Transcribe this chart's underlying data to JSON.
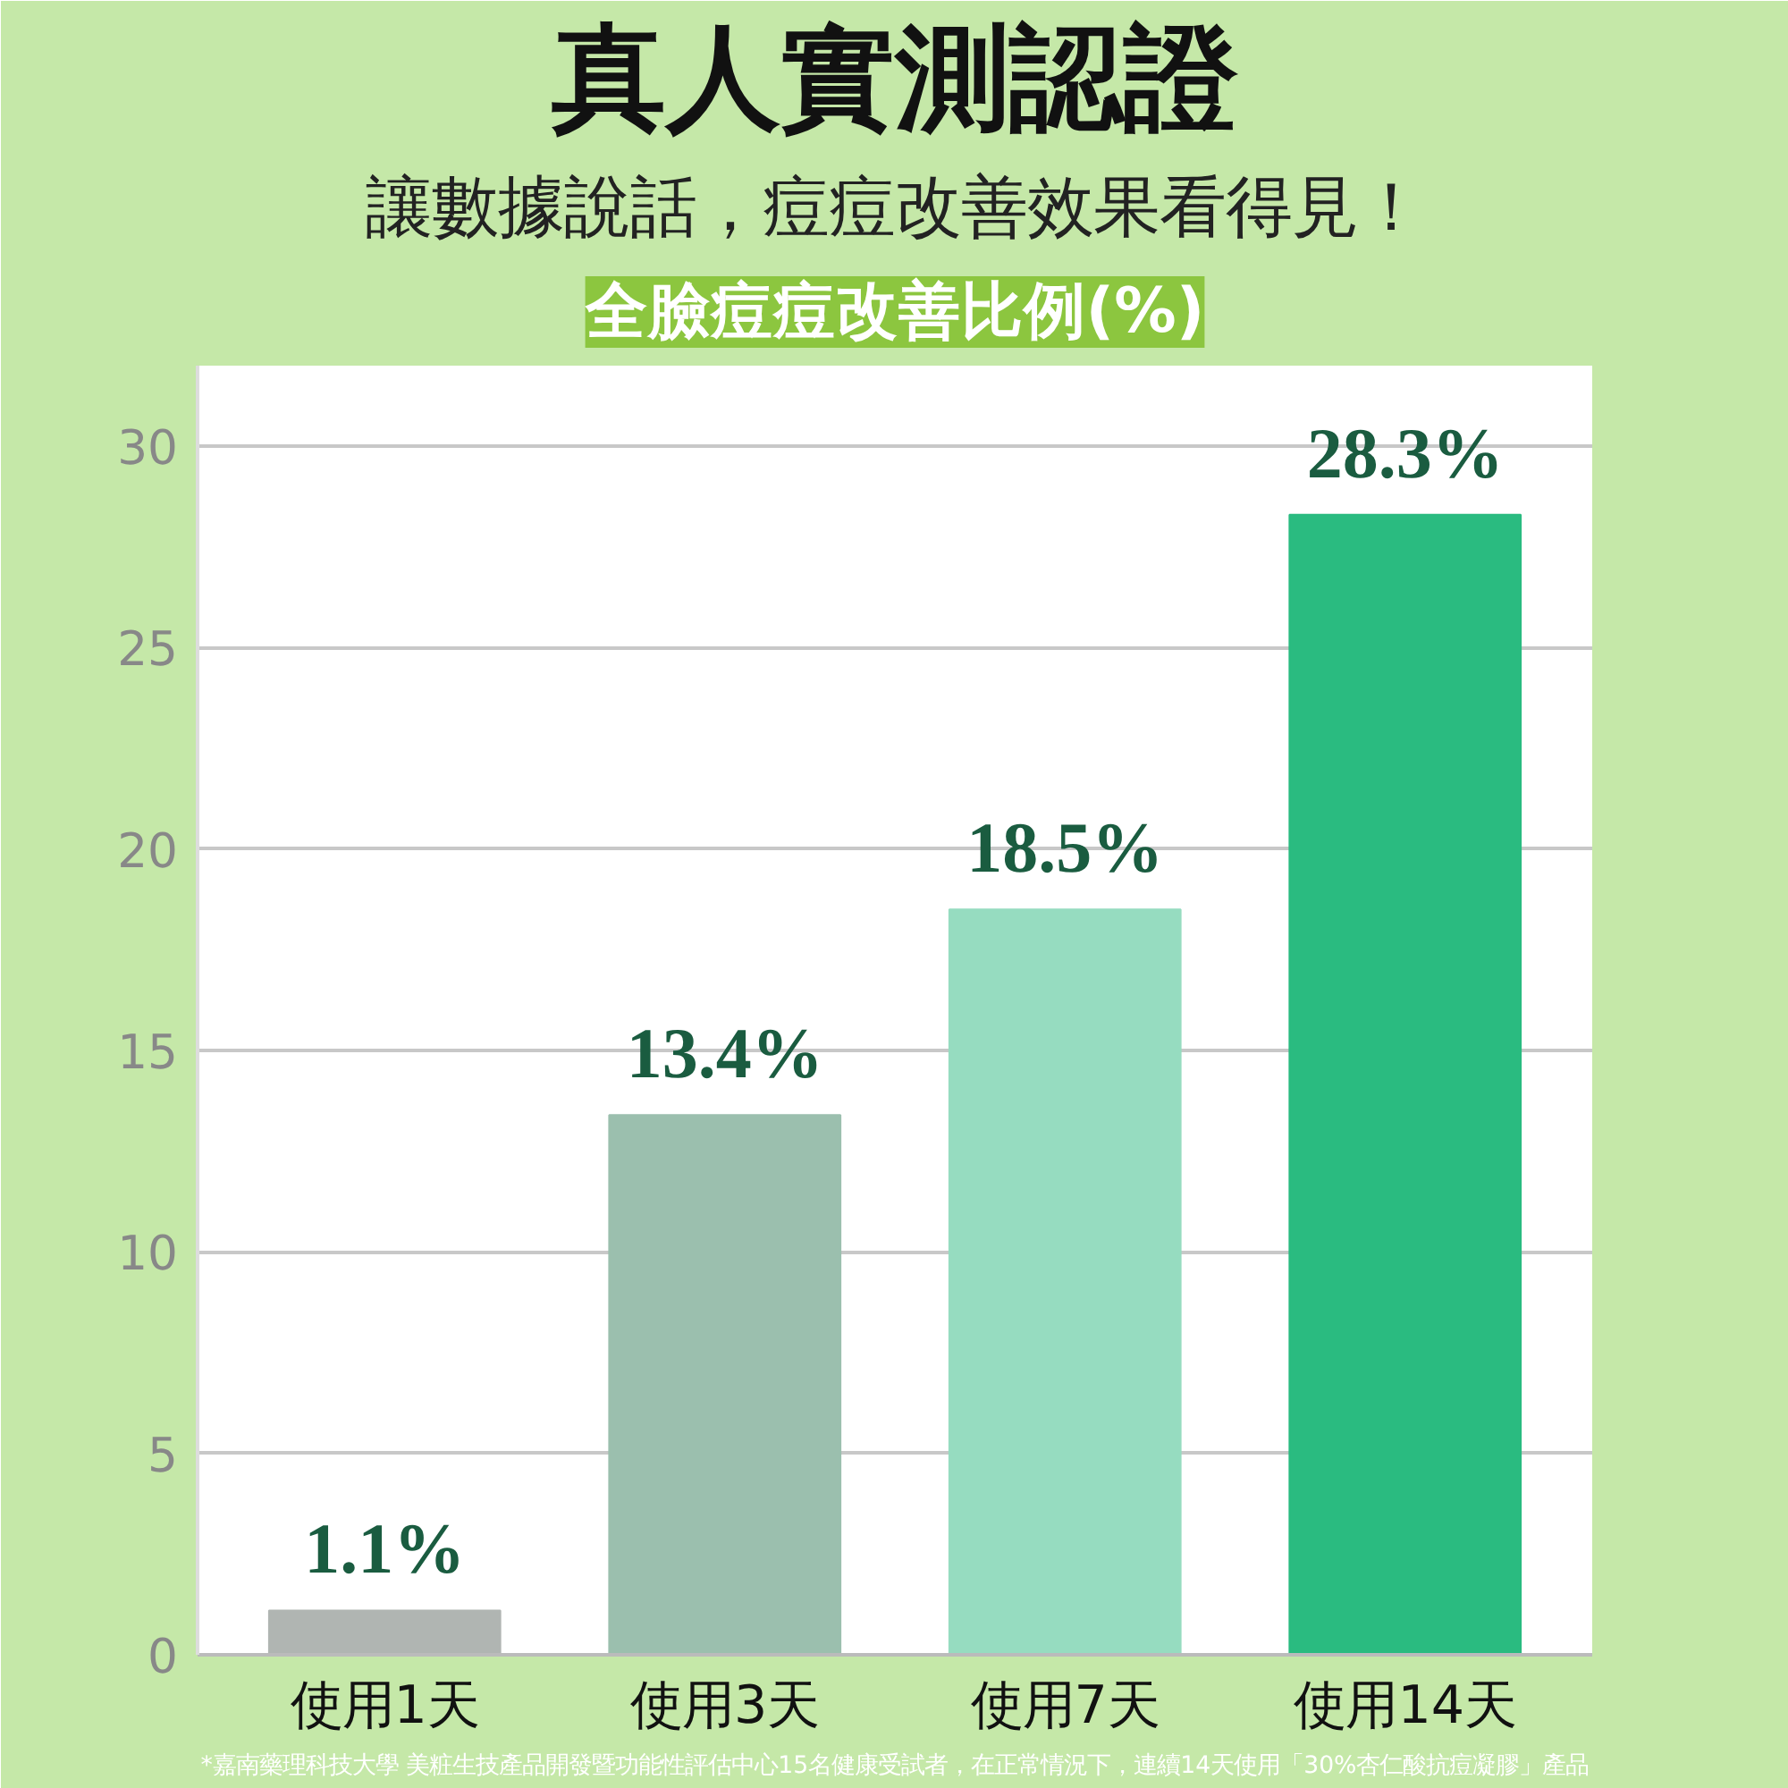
{
  "chart_data": {
    "type": "bar",
    "title": "真人實測認證",
    "subtitle": "讓數據說話，痘痘改善效果看得見！",
    "ylabel": "全臉痘痘改善比例(%)",
    "categories": [
      "使用1天",
      "使用3天",
      "使用7天",
      "使用14天"
    ],
    "values": [
      1.1,
      13.4,
      18.5,
      28.3
    ],
    "colors": [
      "#b0b5b2",
      "#9bbfae",
      "#96dcc0",
      "#2abb80"
    ],
    "value_labels": [
      "1.1%",
      "13.4%",
      "18.5%",
      "28.3%"
    ],
    "ylim": [
      0,
      32
    ],
    "yticks": [
      0,
      5,
      10,
      15,
      20,
      25,
      30
    ],
    "grid": "y",
    "annotations": [
      "*嘉南藥理科技大學 美粧生技產品開發暨功能性評估中心15名健康受試者，在正常情況下，連續14天使用「30%杏仁酸抗痘凝膠」產品"
    ]
  }
}
